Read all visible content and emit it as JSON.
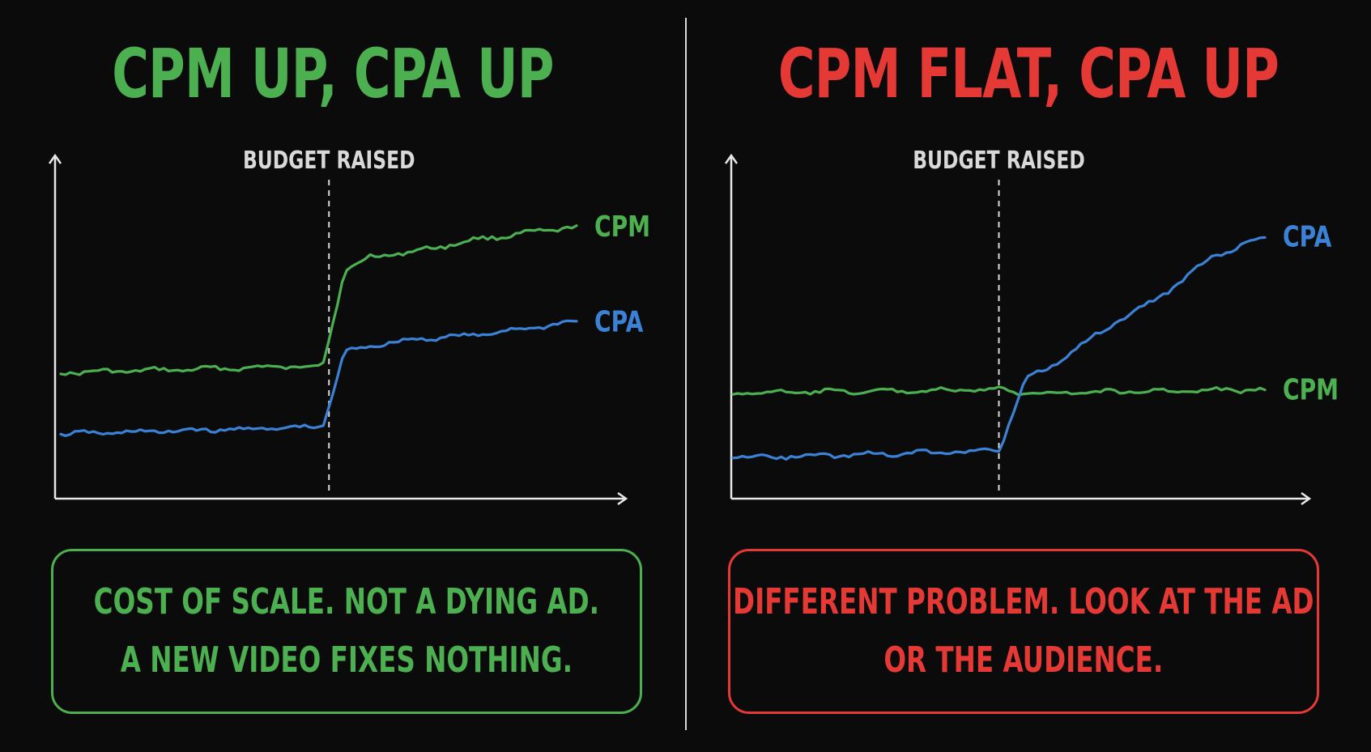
{
  "colors": {
    "background": "#0b0b0b",
    "green": "#4caf50",
    "red": "#e53935",
    "blue": "#3b82d6",
    "axis": "#e8e8e8",
    "annotation": "#d9d9d9"
  },
  "left": {
    "title": "CPM UP, CPA UP",
    "note_lines": [
      "COST OF SCALE. NOT A DYING AD.",
      "A NEW VIDEO FIXES NOTHING."
    ]
  },
  "right": {
    "title": "CPM FLAT, CPA UP",
    "note_lines": [
      "DIFFERENT PROBLEM. LOOK AT THE AD",
      "OR THE AUDIENCE."
    ]
  },
  "chart_data": [
    {
      "type": "line",
      "title": "CPM UP, CPA UP",
      "annotations": [
        {
          "text": "BUDGET RAISED",
          "x": 52
        }
      ],
      "x": [
        0,
        100
      ],
      "ylim": [
        0,
        100
      ],
      "grid": false,
      "series": [
        {
          "name": "CPM",
          "color": "#4caf50",
          "points": [
            [
              0,
              38
            ],
            [
              50,
              40
            ],
            [
              51,
              41
            ],
            [
              55,
              68
            ],
            [
              60,
              72
            ],
            [
              70,
              74
            ],
            [
              80,
              77
            ],
            [
              90,
              79
            ],
            [
              100,
              81
            ]
          ]
        },
        {
          "name": "CPA",
          "color": "#3b82d6",
          "points": [
            [
              0,
              20
            ],
            [
              50,
              22
            ],
            [
              51,
              23
            ],
            [
              55,
              44
            ],
            [
              60,
              46
            ],
            [
              70,
              48
            ],
            [
              80,
              49
            ],
            [
              90,
              51
            ],
            [
              100,
              53
            ]
          ]
        }
      ]
    },
    {
      "type": "line",
      "title": "CPM FLAT, CPA UP",
      "annotations": [
        {
          "text": "BUDGET RAISED",
          "x": 50
        }
      ],
      "x": [
        0,
        100
      ],
      "ylim": [
        0,
        100
      ],
      "grid": false,
      "series": [
        {
          "name": "CPM",
          "color": "#4caf50",
          "points": [
            [
              0,
              32
            ],
            [
              50,
              33
            ],
            [
              55,
              32
            ],
            [
              100,
              33
            ]
          ]
        },
        {
          "name": "CPA",
          "color": "#3b82d6",
          "points": [
            [
              0,
              13
            ],
            [
              50,
              15
            ],
            [
              55,
              36
            ],
            [
              60,
              40
            ],
            [
              70,
              51
            ],
            [
              80,
              60
            ],
            [
              90,
              72
            ],
            [
              100,
              78
            ]
          ]
        }
      ]
    }
  ]
}
